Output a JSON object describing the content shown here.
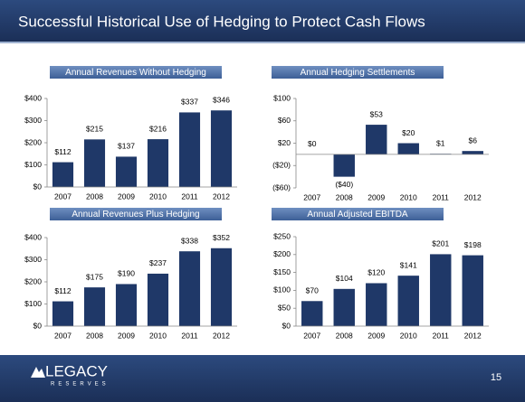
{
  "header": {
    "title": "Successful Historical Use of Hedging to Protect Cash Flows"
  },
  "footer": {
    "logo": "LEGACY",
    "logo_sub": "RESERVES",
    "page": "15"
  },
  "chart_data": [
    {
      "type": "bar",
      "title": "Annual Revenues Without Hedging",
      "categories": [
        "2007",
        "2008",
        "2009",
        "2010",
        "2011",
        "2012"
      ],
      "values": [
        112,
        215,
        137,
        216,
        337,
        346
      ],
      "value_labels": [
        "$112",
        "$215",
        "$137",
        "$216",
        "$337",
        "$346"
      ],
      "color": "#1f3868",
      "ylim": [
        0,
        400
      ],
      "yticks": [
        {
          "value": 0,
          "label": "$0"
        },
        {
          "value": 100,
          "label": "$100"
        },
        {
          "value": 200,
          "label": "$200"
        },
        {
          "value": 300,
          "label": "$300"
        },
        {
          "value": 400,
          "label": "$400"
        }
      ]
    },
    {
      "type": "bar",
      "title": "Annual Hedging Settlements",
      "categories": [
        "2007",
        "2008",
        "2009",
        "2010",
        "2011",
        "2012"
      ],
      "values": [
        0,
        -40,
        53,
        20,
        1,
        6
      ],
      "value_labels": [
        "$0",
        "($40)",
        "$53",
        "$20",
        "$1",
        "$6"
      ],
      "color": "#1f3868",
      "ylim": [
        -60,
        100
      ],
      "yticks": [
        {
          "value": -60,
          "label": "($60)"
        },
        {
          "value": -20,
          "label": "($20)"
        },
        {
          "value": 20,
          "label": "$20"
        },
        {
          "value": 60,
          "label": "$60"
        },
        {
          "value": 100,
          "label": "$100"
        }
      ]
    },
    {
      "type": "bar",
      "title": "Annual Revenues Plus Hedging",
      "categories": [
        "2007",
        "2008",
        "2009",
        "2010",
        "2011",
        "2012"
      ],
      "values": [
        112,
        175,
        190,
        237,
        338,
        352
      ],
      "value_labels": [
        "$112",
        "$175",
        "$190",
        "$237",
        "$338",
        "$352"
      ],
      "color": "#1f3868",
      "ylim": [
        0,
        400
      ],
      "yticks": [
        {
          "value": 0,
          "label": "$0"
        },
        {
          "value": 100,
          "label": "$100"
        },
        {
          "value": 200,
          "label": "$200"
        },
        {
          "value": 300,
          "label": "$300"
        },
        {
          "value": 400,
          "label": "$400"
        }
      ]
    },
    {
      "type": "bar",
      "title": "Annual Adjusted EBITDA",
      "categories": [
        "2007",
        "2008",
        "2009",
        "2010",
        "2011",
        "2012"
      ],
      "values": [
        70,
        104,
        120,
        141,
        201,
        198
      ],
      "value_labels": [
        "$70",
        "$104",
        "$120",
        "$141",
        "$201",
        "$198"
      ],
      "color": "#1f3868",
      "ylim": [
        0,
        250
      ],
      "yticks": [
        {
          "value": 0,
          "label": "$0"
        },
        {
          "value": 50,
          "label": "$50"
        },
        {
          "value": 100,
          "label": "$100"
        },
        {
          "value": 150,
          "label": "$150"
        },
        {
          "value": 200,
          "label": "$200"
        },
        {
          "value": 250,
          "label": "$250"
        }
      ]
    }
  ]
}
